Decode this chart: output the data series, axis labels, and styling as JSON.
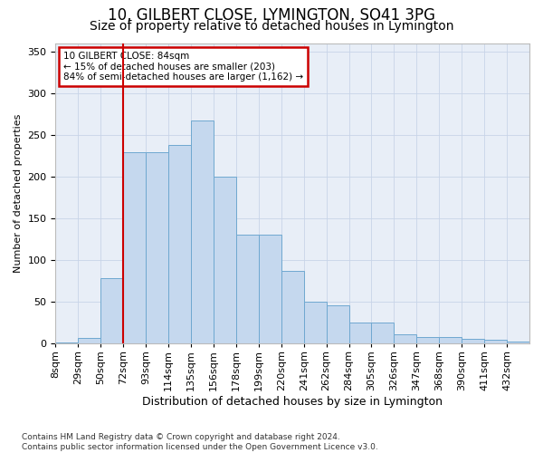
{
  "title": "10, GILBERT CLOSE, LYMINGTON, SO41 3PG",
  "subtitle": "Size of property relative to detached houses in Lymington",
  "xlabel": "Distribution of detached houses by size in Lymington",
  "ylabel": "Number of detached properties",
  "bar_color": "#c5d8ee",
  "bar_edge_color": "#6fa8d0",
  "bg_color": "#e8eef7",
  "categories": [
    "8sqm",
    "29sqm",
    "50sqm",
    "72sqm",
    "93sqm",
    "114sqm",
    "135sqm",
    "156sqm",
    "178sqm",
    "199sqm",
    "220sqm",
    "241sqm",
    "262sqm",
    "284sqm",
    "305sqm",
    "326sqm",
    "347sqm",
    "368sqm",
    "390sqm",
    "411sqm",
    "432sqm"
  ],
  "values": [
    2,
    7,
    78,
    229,
    229,
    238,
    267,
    200,
    131,
    131,
    87,
    50,
    46,
    25,
    25,
    11,
    8,
    8,
    6,
    5,
    3
  ],
  "ylim": [
    0,
    360
  ],
  "yticks": [
    0,
    50,
    100,
    150,
    200,
    250,
    300,
    350
  ],
  "marker_bar_index": 3,
  "marker_color": "#cc0000",
  "annotation_line1": "10 GILBERT CLOSE: 84sqm",
  "annotation_line2": "← 15% of detached houses are smaller (203)",
  "annotation_line3": "84% of semi-detached houses are larger (1,162) →",
  "annotation_box_facecolor": "#ffffff",
  "annotation_box_edgecolor": "#cc0000",
  "grid_color": "#c8d4e8",
  "title_fontsize": 12,
  "subtitle_fontsize": 10,
  "xlabel_fontsize": 9,
  "ylabel_fontsize": 8,
  "tick_fontsize": 8,
  "footer": "Contains HM Land Registry data © Crown copyright and database right 2024.\nContains public sector information licensed under the Open Government Licence v3.0.",
  "footer_fontsize": 6.5
}
